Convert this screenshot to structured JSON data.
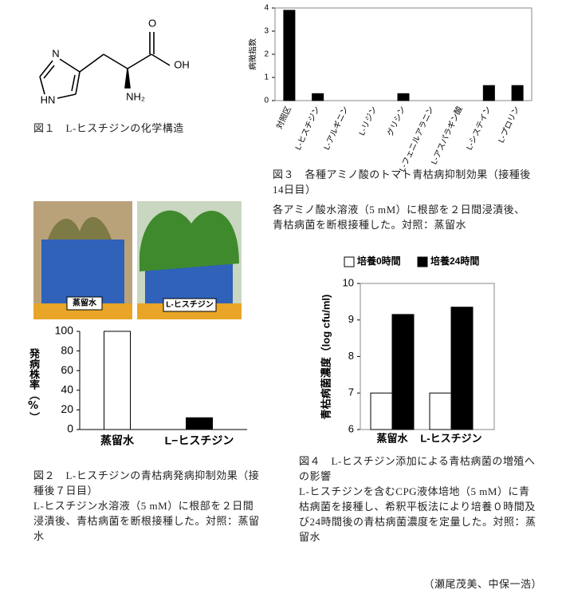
{
  "figure1": {
    "atoms": [
      "N",
      "HN",
      "NH₂",
      "O",
      "OH"
    ],
    "caption": "図１　L-ヒスチジンの化学構造"
  },
  "photos": [
    {
      "label": "蒸留水"
    },
    {
      "label": "L-ヒスチジン"
    }
  ],
  "chart_data": [
    {
      "type": "bar",
      "y_label": "病徴指数",
      "categories": [
        "対照区",
        "L-ヒスチジン",
        "L-アルギニン",
        "L-リジン",
        "グリシン",
        "L-フェニルアラニン",
        "L-アスパラギン酸",
        "L-システイン",
        "L-プロリン"
      ],
      "values": [
        3.9,
        0.3,
        0,
        0,
        0.3,
        0,
        0,
        0.65,
        0.65
      ],
      "color": "#000000",
      "ylim": [
        0,
        4
      ],
      "yticks": [
        0,
        1,
        2,
        3,
        4
      ],
      "caption_title": "図３　各種アミノ酸のトマト青枯病抑制効果（接種後14日目）",
      "caption_body": "各アミノ酸水溶液（5 mM）に根部を２日間浸漬後、青枯病菌を断根接種した。対照：蒸留水"
    },
    {
      "type": "bar",
      "y_label": "発病株率（%）",
      "categories": [
        "蒸留水",
        "L−ヒスチジン"
      ],
      "values": [
        100,
        12
      ],
      "colors": [
        "#ffffff",
        "#000000"
      ],
      "ylim": [
        0,
        100
      ],
      "yticks": [
        0,
        20,
        40,
        60,
        80,
        100
      ],
      "caption_title": "図２　L-ヒスチジンの青枯病発病抑制効果（接種後７日目）",
      "caption_body": "L-ヒスチジン水溶液（5 mM）に根部を２日間浸漬後、青枯病菌を断根接種した。対照：蒸留水"
    },
    {
      "type": "grouped-bar",
      "y_label": "青枯病菌濃度（log cfu/ml)",
      "categories": [
        "蒸留水",
        "L-ヒスチジン"
      ],
      "series": [
        {
          "name": "培養0時間",
          "color": "#ffffff",
          "values": [
            7.0,
            7.0
          ]
        },
        {
          "name": "培養24時間",
          "color": "#000000",
          "values": [
            9.15,
            9.35
          ]
        }
      ],
      "ylim": [
        6,
        10
      ],
      "yticks": [
        6,
        7,
        8,
        9,
        10
      ],
      "caption_title": "図４　L-ヒスチジン添加による青枯病菌の増殖への影響",
      "caption_body": "L-ヒスチジンを含むCPG液体培地（5 mM）に青枯病菌を接種し、希釈平板法により培養０時間及び24時間後の青枯病菌濃度を定量した。対照：蒸留水"
    }
  ],
  "authors": "（瀬尾茂美、中保一浩）"
}
